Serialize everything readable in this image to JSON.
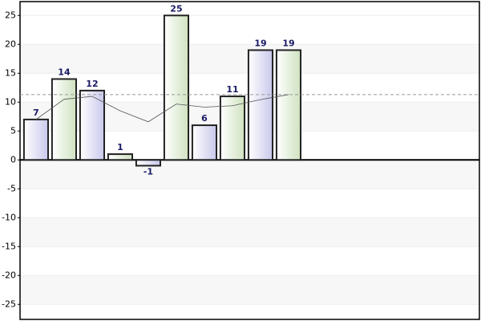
{
  "chart_data": {
    "type": "bar",
    "x": [
      1,
      2,
      3,
      4,
      5,
      6,
      7,
      8,
      9,
      10
    ],
    "xlim": [
      0.43,
      16.8
    ],
    "series": [
      {
        "type": "bar",
        "colors": [
          "#d8d8f0",
          "#dce8d0"
        ],
        "values": [
          7,
          14,
          12,
          1,
          -1,
          25,
          6,
          11,
          19,
          19
        ]
      },
      {
        "type": "line",
        "color": "#555555",
        "values": [
          7,
          10.5,
          11,
          8.5,
          6.6,
          9.67,
          9.14,
          9.38,
          10.44,
          11.3
        ]
      }
    ],
    "reference_line": {
      "value": 11.3,
      "color": "#999999"
    },
    "ylim": [
      -27.6,
      27.4
    ],
    "yticks": [
      -25,
      -20,
      -15,
      -10,
      -5,
      0,
      5,
      10,
      15,
      20,
      25
    ],
    "grid": true
  }
}
